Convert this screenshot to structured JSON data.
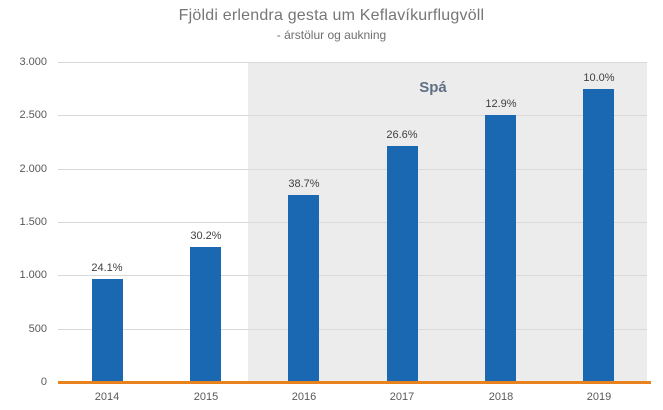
{
  "chart_data": {
    "type": "bar",
    "title": "Fjöldi erlendra gesta um Keflavíkurflugvöll",
    "subtitle": "- árstölur og aukning",
    "categories": [
      "2014",
      "2015",
      "2016",
      "2017",
      "2018",
      "2019"
    ],
    "values": [
      969,
      1262,
      1750,
      2215,
      2501,
      2751
    ],
    "bar_labels": [
      "24.1%",
      "30.2%",
      "38.7%",
      "26.6%",
      "12.9%",
      "10.0%"
    ],
    "ylim": [
      0,
      3000
    ],
    "ytick_values": [
      0,
      500,
      1000,
      1500,
      2000,
      2500,
      3000
    ],
    "ytick_labels": [
      "0",
      "500",
      "1.000",
      "1.500",
      "2.000",
      "2.500",
      "3.000"
    ],
    "grid": true,
    "legend": "none",
    "annotation": {
      "label": "Spá",
      "applies_to": [
        "2016",
        "2017",
        "2018",
        "2019"
      ]
    },
    "colors": {
      "bar": "#1A68B2",
      "baseline": "#E8821E",
      "forecast_band": "#ECECEC",
      "gridline": "#D9D9D9",
      "title_text": "#767676",
      "subtitle_text": "#6F6F6F",
      "tick_text": "#595959",
      "value_text": "#3F3F3F",
      "forecast_text": "#5D7083"
    }
  }
}
